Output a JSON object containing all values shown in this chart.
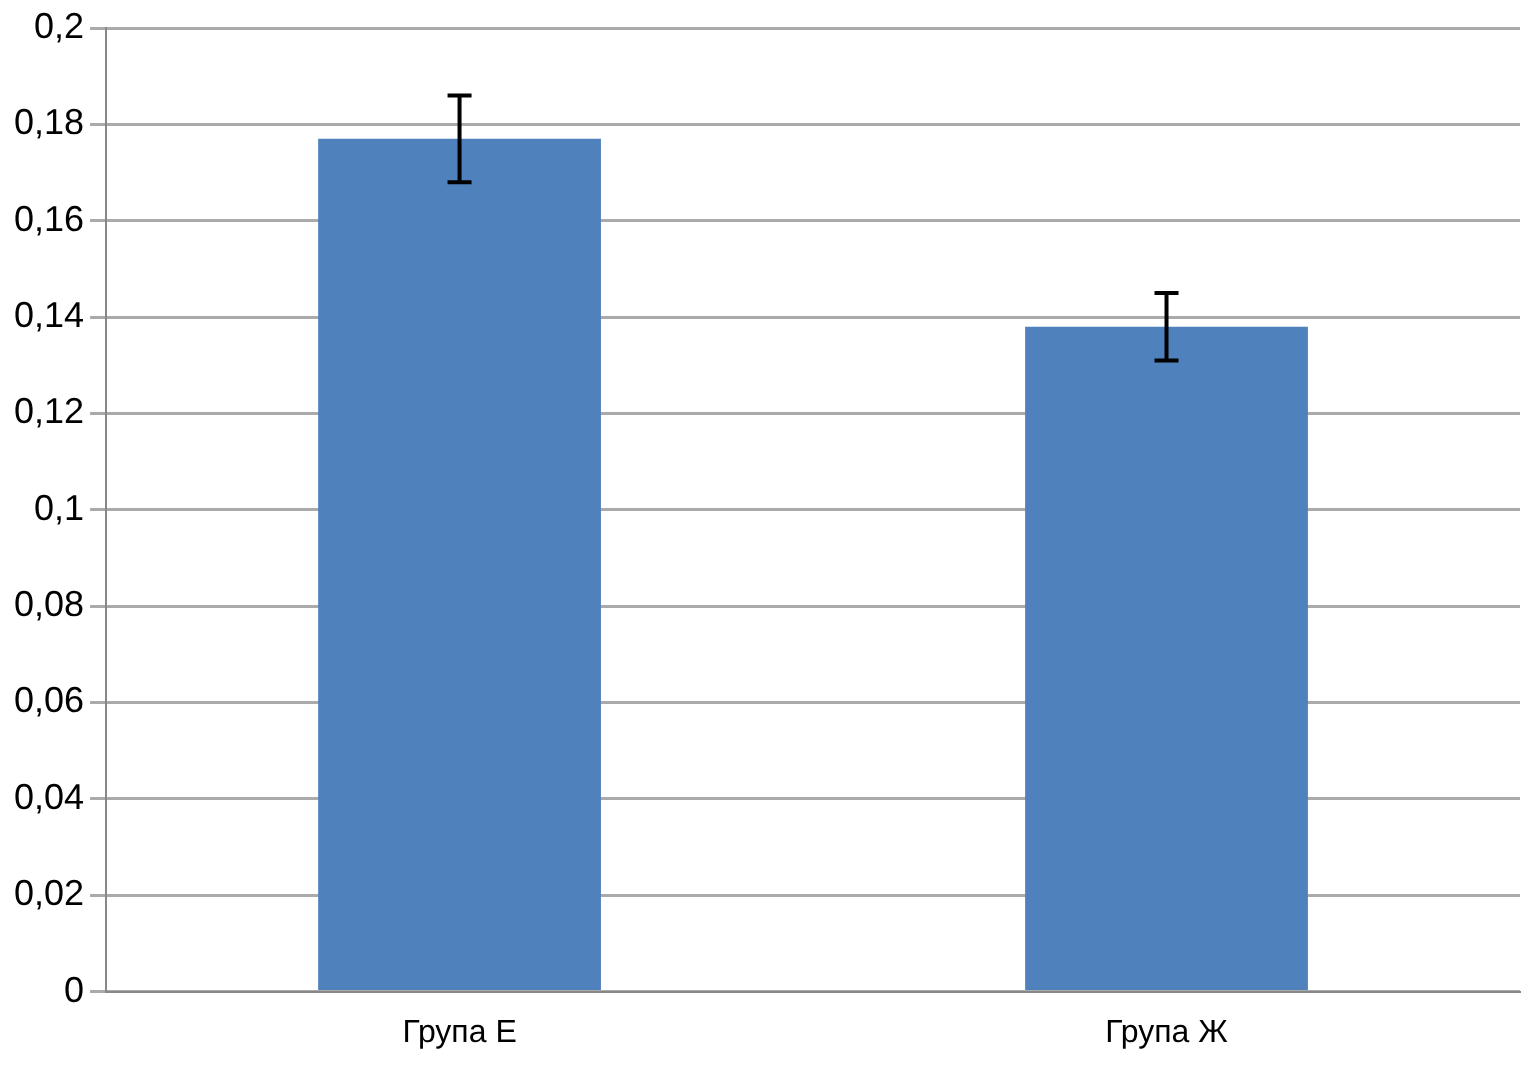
{
  "chart_data": {
    "type": "bar",
    "categories": [
      "Група Е",
      "Група Ж"
    ],
    "values": [
      0.177,
      0.138
    ],
    "errors": [
      0.009,
      0.007
    ],
    "color": "#4f81bd",
    "ylim": [
      0,
      0.2
    ],
    "yticks": [
      {
        "value": 0,
        "label": "0"
      },
      {
        "value": 0.02,
        "label": "0,02"
      },
      {
        "value": 0.04,
        "label": "0,04"
      },
      {
        "value": 0.06,
        "label": "0,06"
      },
      {
        "value": 0.08,
        "label": "0,08"
      },
      {
        "value": 0.1,
        "label": "0,1"
      },
      {
        "value": 0.12,
        "label": "0,12"
      },
      {
        "value": 0.14,
        "label": "0,14"
      },
      {
        "value": 0.16,
        "label": "0,16"
      },
      {
        "value": 0.18,
        "label": "0,18"
      },
      {
        "value": 0.2,
        "label": "0,2"
      }
    ],
    "grid": "y",
    "legend": false
  }
}
